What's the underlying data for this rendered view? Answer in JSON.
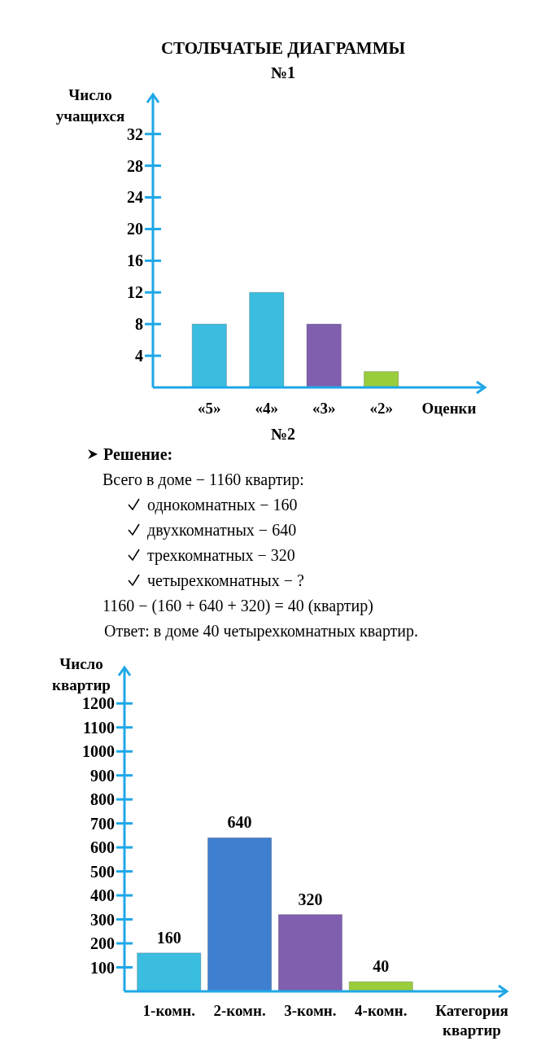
{
  "chart_data": [
    {
      "type": "bar",
      "title": "СТОЛБЧАТЫЕ ДИАГРАММЫ",
      "subtitle": "№1",
      "xlabel": "Оценки",
      "ylabel": "Число учащихся",
      "categories": [
        "«5»",
        "«4»",
        "«3»",
        "«2»"
      ],
      "values": [
        8,
        12,
        8,
        2
      ],
      "colors": [
        "#3bbde0",
        "#3bbde0",
        "#7f5fae",
        "#9acd3c"
      ],
      "ylim": [
        0,
        37
      ],
      "yticks": [
        4,
        8,
        12,
        16,
        20,
        24,
        28,
        32
      ],
      "grid": false
    },
    {
      "type": "bar",
      "title": "№2",
      "xlabel": "Категория квартир",
      "ylabel": "Число квартир",
      "categories": [
        "1-комн.",
        "2-комн.",
        "3-комн.",
        "4-комн."
      ],
      "values": [
        160,
        640,
        320,
        40
      ],
      "colors": [
        "#3bbde0",
        "#3f7fd0",
        "#7f5fae",
        "#9acd3c"
      ],
      "ylim": [
        0,
        1350
      ],
      "yticks": [
        100,
        200,
        300,
        400,
        500,
        600,
        700,
        800,
        900,
        1000,
        1100,
        1200
      ],
      "grid": false,
      "data_labels": true,
      "annotations": [
        "Решение:",
        "Всего в доме − 1160 квартир:",
        "однокомнатных − 160",
        "двухкомнатных − 640",
        "трехкомнатных − 320",
        "четырехкомнатных − ?",
        "1160 − (160 + 640 + 320) = 40 (квартир)",
        "Ответ: в доме 40 четырехкомнатных квартир."
      ]
    }
  ]
}
